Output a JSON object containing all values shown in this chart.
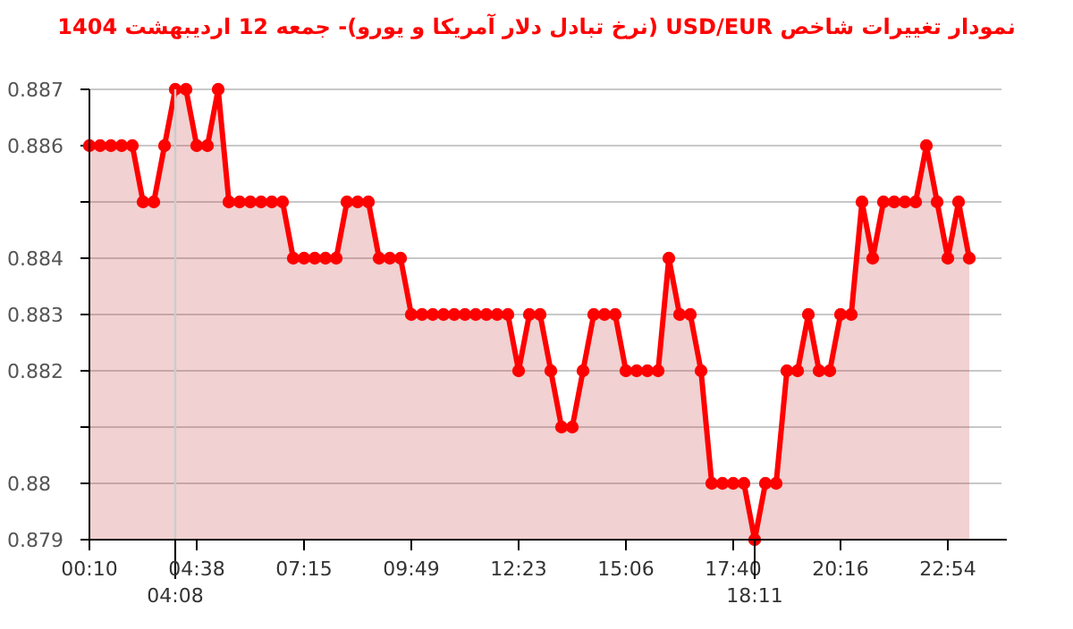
{
  "chart_data": {
    "type": "area",
    "title": "نمودار تغییرات شاخص USD/EUR (نرخ تبادل دلار آمریکا و یورو)- جمعه  12 اردیبهشت 1404",
    "categories": [
      "00:10",
      null,
      null,
      null,
      null,
      null,
      null,
      null,
      "04:08",
      null,
      "04:38",
      null,
      null,
      null,
      null,
      null,
      null,
      null,
      null,
      null,
      "07:15",
      null,
      null,
      null,
      null,
      null,
      null,
      null,
      null,
      null,
      "09:49",
      null,
      null,
      null,
      null,
      null,
      null,
      null,
      null,
      null,
      "12:23",
      null,
      null,
      null,
      null,
      null,
      null,
      null,
      null,
      null,
      "15:06",
      null,
      null,
      null,
      null,
      null,
      null,
      null,
      null,
      null,
      "17:40",
      null,
      "18:11",
      null,
      null,
      null,
      null,
      null,
      null,
      null,
      "20:16",
      null,
      null,
      null,
      null,
      null,
      null,
      null,
      null,
      null,
      "22:54",
      null,
      null
    ],
    "series": [
      {
        "color": "#ff0000",
        "values": [
          0.886,
          0.886,
          0.886,
          0.886,
          0.886,
          0.885,
          0.885,
          0.886,
          0.887,
          0.887,
          0.886,
          0.886,
          0.887,
          0.885,
          0.885,
          0.885,
          0.885,
          0.885,
          0.885,
          0.884,
          0.884,
          0.884,
          0.884,
          0.884,
          0.885,
          0.885,
          0.885,
          0.884,
          0.884,
          0.884,
          0.883,
          0.883,
          0.883,
          0.883,
          0.883,
          0.883,
          0.883,
          0.883,
          0.883,
          0.883,
          0.882,
          0.883,
          0.883,
          0.882,
          0.881,
          0.881,
          0.882,
          0.883,
          0.883,
          0.883,
          0.882,
          0.882,
          0.882,
          0.882,
          0.884,
          0.883,
          0.883,
          0.882,
          0.88,
          0.88,
          0.88,
          0.88,
          0.879,
          0.88,
          0.88,
          0.882,
          0.882,
          0.883,
          0.882,
          0.882,
          0.883,
          0.883,
          0.885,
          0.884,
          0.885,
          0.885,
          0.885,
          0.885,
          0.886,
          0.885,
          0.884,
          0.885,
          0.884
        ]
      }
    ],
    "ylim": [
      0.879,
      0.887
    ],
    "yticks": [
      0.879,
      0.88,
      {
        "value": 0.881,
        "label": null
      },
      0.882,
      0.883,
      0.884,
      {
        "value": 0.885,
        "label": null
      },
      0.886,
      0.887
    ],
    "ref_lines": [
      {
        "axis": "x",
        "value": "04:08",
        "color": "#cccccc"
      }
    ],
    "grid": "y",
    "marker": "circle",
    "line_style": "solid"
  }
}
